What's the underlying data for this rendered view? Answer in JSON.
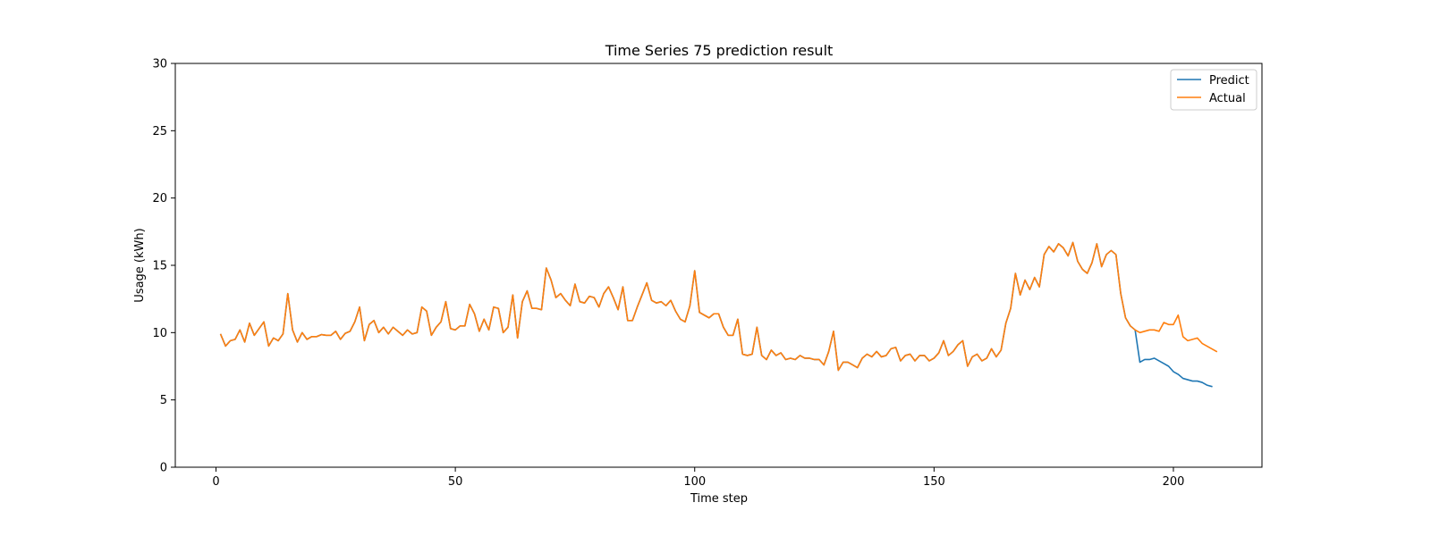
{
  "chart_data": {
    "type": "line",
    "title": "Time Series 75 prediction result",
    "xlabel": "Time step",
    "ylabel": "Usage (kWh)",
    "xlim": [
      -8.5,
      218.5
    ],
    "ylim": [
      0,
      30
    ],
    "xticks": [
      0,
      50,
      100,
      150,
      200
    ],
    "yticks": [
      0,
      5,
      10,
      15,
      20,
      25,
      30
    ],
    "grid": false,
    "legend_position": "top-right",
    "x_start": 1,
    "series": [
      {
        "name": "Predict",
        "color": "#1f77b4",
        "values": [
          9.85,
          9.0,
          9.4,
          9.5,
          10.2,
          9.3,
          10.7,
          9.8,
          10.3,
          10.8,
          9.0,
          9.6,
          9.4,
          9.9,
          12.9,
          10.2,
          9.3,
          10.0,
          9.5,
          9.7,
          9.7,
          9.85,
          9.8,
          9.8,
          10.1,
          9.5,
          9.95,
          10.1,
          10.8,
          11.9,
          9.4,
          10.6,
          10.9,
          10.0,
          10.4,
          9.9,
          10.4,
          10.1,
          9.8,
          10.2,
          9.9,
          10.0,
          11.9,
          11.6,
          9.8,
          10.4,
          10.8,
          12.3,
          10.3,
          10.2,
          10.5,
          10.5,
          12.1,
          11.4,
          10.1,
          11.0,
          10.2,
          11.9,
          11.8,
          10.0,
          10.4,
          12.8,
          9.6,
          12.3,
          13.1,
          11.8,
          11.8,
          11.7,
          14.8,
          13.9,
          12.6,
          12.9,
          12.4,
          12.0,
          13.6,
          12.3,
          12.2,
          12.7,
          12.6,
          11.9,
          12.9,
          13.4,
          12.6,
          11.7,
          13.4,
          10.9,
          10.9,
          11.9,
          12.8,
          13.7,
          12.4,
          12.2,
          12.3,
          12.0,
          12.4,
          11.6,
          11.0,
          10.8,
          12.0,
          14.6,
          11.5,
          11.3,
          11.1,
          11.4,
          11.4,
          10.4,
          9.8,
          9.8,
          11.0,
          8.4,
          8.3,
          8.4,
          10.4,
          8.3,
          8.0,
          8.7,
          8.3,
          8.5,
          8.0,
          8.1,
          8.0,
          8.3,
          8.1,
          8.1,
          8.0,
          8.0,
          7.6,
          8.6,
          10.1,
          7.2,
          7.8,
          7.8,
          7.6,
          7.4,
          8.1,
          8.4,
          8.2,
          8.6,
          8.2,
          8.3,
          8.8,
          8.9,
          7.9,
          8.3,
          8.4,
          7.9,
          8.3,
          8.3,
          7.9,
          8.1,
          8.5,
          9.4,
          8.3,
          8.6,
          9.1,
          9.4,
          7.5,
          8.2,
          8.4,
          7.9,
          8.1,
          8.8,
          8.2,
          8.7,
          10.7,
          11.8,
          14.4,
          12.8,
          13.9,
          13.2,
          14.1,
          13.4,
          15.8,
          16.4,
          16.0,
          16.6,
          16.3,
          15.7,
          16.7,
          15.3,
          14.7,
          14.4,
          15.2,
          16.6,
          14.9,
          15.8,
          16.1,
          15.8,
          12.9,
          11.1,
          10.5,
          10.2,
          7.8,
          8.0,
          8.0,
          8.1,
          7.9,
          7.7,
          7.5,
          7.1,
          6.9,
          6.6,
          6.5,
          6.4,
          6.4,
          6.3,
          6.1,
          6.0
        ]
      },
      {
        "name": "Actual",
        "color": "#ff7f0e",
        "values": [
          9.85,
          9.0,
          9.4,
          9.5,
          10.2,
          9.3,
          10.7,
          9.8,
          10.3,
          10.8,
          9.0,
          9.6,
          9.4,
          9.9,
          12.9,
          10.2,
          9.3,
          10.0,
          9.5,
          9.7,
          9.7,
          9.85,
          9.8,
          9.8,
          10.1,
          9.5,
          9.95,
          10.1,
          10.8,
          11.9,
          9.4,
          10.6,
          10.9,
          10.0,
          10.4,
          9.9,
          10.4,
          10.1,
          9.8,
          10.2,
          9.9,
          10.0,
          11.9,
          11.6,
          9.8,
          10.4,
          10.8,
          12.3,
          10.3,
          10.2,
          10.5,
          10.5,
          12.1,
          11.4,
          10.1,
          11.0,
          10.2,
          11.9,
          11.8,
          10.0,
          10.4,
          12.8,
          9.6,
          12.3,
          13.1,
          11.8,
          11.8,
          11.7,
          14.8,
          13.9,
          12.6,
          12.9,
          12.4,
          12.0,
          13.6,
          12.3,
          12.2,
          12.7,
          12.6,
          11.9,
          12.9,
          13.4,
          12.6,
          11.7,
          13.4,
          10.9,
          10.9,
          11.9,
          12.8,
          13.7,
          12.4,
          12.2,
          12.3,
          12.0,
          12.4,
          11.6,
          11.0,
          10.8,
          12.0,
          14.6,
          11.5,
          11.3,
          11.1,
          11.4,
          11.4,
          10.4,
          9.8,
          9.8,
          11.0,
          8.4,
          8.3,
          8.4,
          10.4,
          8.3,
          8.0,
          8.7,
          8.3,
          8.5,
          8.0,
          8.1,
          8.0,
          8.3,
          8.1,
          8.1,
          8.0,
          8.0,
          7.6,
          8.6,
          10.1,
          7.2,
          7.8,
          7.8,
          7.6,
          7.4,
          8.1,
          8.4,
          8.2,
          8.6,
          8.2,
          8.3,
          8.8,
          8.9,
          7.9,
          8.3,
          8.4,
          7.9,
          8.3,
          8.3,
          7.9,
          8.1,
          8.5,
          9.4,
          8.3,
          8.6,
          9.1,
          9.4,
          7.5,
          8.2,
          8.4,
          7.9,
          8.1,
          8.8,
          8.2,
          8.7,
          10.7,
          11.8,
          14.4,
          12.8,
          13.9,
          13.2,
          14.1,
          13.4,
          15.8,
          16.4,
          16.0,
          16.6,
          16.3,
          15.7,
          16.7,
          15.3,
          14.7,
          14.4,
          15.2,
          16.6,
          14.9,
          15.8,
          16.1,
          15.8,
          12.9,
          11.1,
          10.5,
          10.2,
          10.0,
          10.1,
          10.2,
          10.2,
          10.1,
          10.75,
          10.6,
          10.6,
          11.3,
          9.7,
          9.4,
          9.5,
          9.6,
          9.2,
          9.0,
          8.8,
          8.6
        ]
      }
    ]
  }
}
